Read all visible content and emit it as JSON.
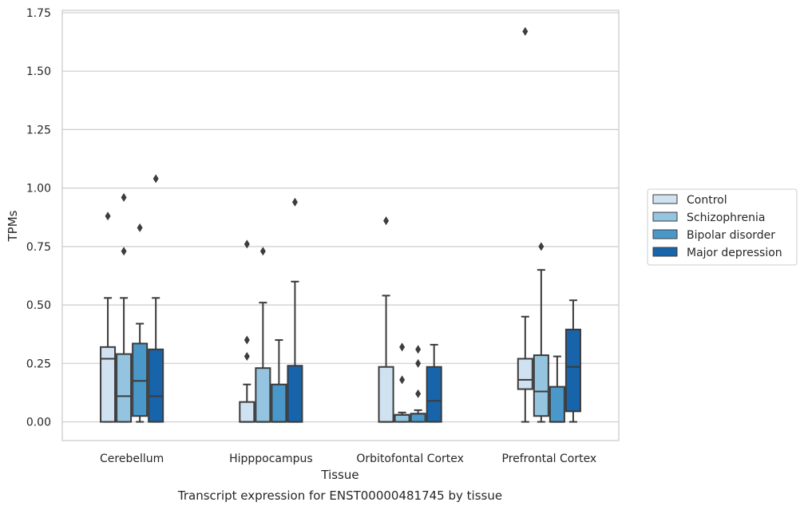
{
  "chart_data": {
    "type": "box",
    "xlabel": "Tissue",
    "ylabel": "TPMs",
    "caption": "Transcript expression for ENST00000481745 by tissue",
    "ylim": [
      -0.08,
      1.76
    ],
    "yticks": [
      "0.00",
      "0.25",
      "0.50",
      "0.75",
      "1.00",
      "1.25",
      "1.50",
      "1.75"
    ],
    "grid": true,
    "legend_position": "right",
    "categories": [
      "Cerebellum",
      "Hipppocampus",
      "Orbitofontal Cortex",
      "Prefrontal Cortex"
    ],
    "series": [
      {
        "name": "Control",
        "color": "#d0e1f2",
        "boxes": [
          {
            "whislo": 0.0,
            "q1": 0.0,
            "med": 0.27,
            "q3": 0.32,
            "whishi": 0.53,
            "fliers": [
              0.88
            ]
          },
          {
            "whislo": 0.0,
            "q1": 0.0,
            "med": 0.0,
            "q3": 0.085,
            "whishi": 0.16,
            "fliers": [
              0.28,
              0.35,
              0.76
            ]
          },
          {
            "whislo": 0.0,
            "q1": 0.0,
            "med": 0.0,
            "q3": 0.235,
            "whishi": 0.54,
            "fliers": [
              0.86
            ]
          },
          {
            "whislo": 0.0,
            "q1": 0.14,
            "med": 0.18,
            "q3": 0.27,
            "whishi": 0.45,
            "fliers": [
              1.67
            ]
          }
        ]
      },
      {
        "name": "Schizophrenia",
        "color": "#94c4df",
        "boxes": [
          {
            "whislo": 0.0,
            "q1": 0.0,
            "med": 0.11,
            "q3": 0.29,
            "whishi": 0.53,
            "fliers": [
              0.73,
              0.96
            ]
          },
          {
            "whislo": 0.0,
            "q1": 0.0,
            "med": 0.0,
            "q3": 0.23,
            "whishi": 0.51,
            "fliers": [
              0.73
            ]
          },
          {
            "whislo": 0.0,
            "q1": 0.0,
            "med": 0.03,
            "q3": 0.03,
            "whishi": 0.04,
            "fliers": [
              0.18,
              0.32
            ]
          },
          {
            "whislo": 0.0,
            "q1": 0.025,
            "med": 0.13,
            "q3": 0.285,
            "whishi": 0.65,
            "fliers": [
              0.75
            ]
          }
        ]
      },
      {
        "name": "Bipolar disorder",
        "color": "#4a98c9",
        "boxes": [
          {
            "whislo": 0.0,
            "q1": 0.025,
            "med": 0.175,
            "q3": 0.335,
            "whishi": 0.42,
            "fliers": [
              0.83
            ]
          },
          {
            "whislo": 0.0,
            "q1": 0.0,
            "med": 0.0,
            "q3": 0.16,
            "whishi": 0.35,
            "fliers": []
          },
          {
            "whislo": 0.0,
            "q1": 0.0,
            "med": 0.035,
            "q3": 0.035,
            "whishi": 0.05,
            "fliers": [
              0.12,
              0.25,
              0.31
            ]
          },
          {
            "whislo": 0.0,
            "q1": 0.0,
            "med": 0.0,
            "q3": 0.15,
            "whishi": 0.28,
            "fliers": []
          }
        ]
      },
      {
        "name": "Major depression",
        "color": "#1764ab",
        "boxes": [
          {
            "whislo": 0.0,
            "q1": 0.0,
            "med": 0.11,
            "q3": 0.31,
            "whishi": 0.53,
            "fliers": [
              1.04
            ]
          },
          {
            "whislo": 0.0,
            "q1": 0.0,
            "med": 0.0,
            "q3": 0.24,
            "whishi": 0.6,
            "fliers": [
              0.94
            ]
          },
          {
            "whislo": 0.0,
            "q1": 0.0,
            "med": 0.09,
            "q3": 0.235,
            "whishi": 0.33,
            "fliers": []
          },
          {
            "whislo": 0.0,
            "q1": 0.045,
            "med": 0.235,
            "q3": 0.395,
            "whishi": 0.52,
            "fliers": []
          }
        ]
      }
    ]
  }
}
